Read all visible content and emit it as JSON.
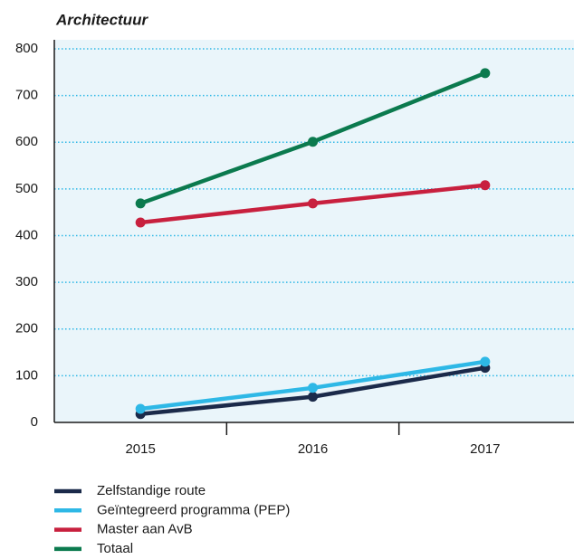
{
  "chart_data": {
    "type": "line",
    "title": "Architectuur",
    "categories": [
      "2015",
      "2016",
      "2017"
    ],
    "series": [
      {
        "name": "Zelfstandige route",
        "color": "#1b2a4a",
        "values": [
          18,
          55,
          117
        ]
      },
      {
        "name": "Geïntegreerd programma (PEP)",
        "color": "#2eb8e6",
        "values": [
          29,
          74,
          130
        ]
      },
      {
        "name": "Master aan AvB",
        "color": "#c8203e",
        "values": [
          428,
          469,
          508
        ]
      },
      {
        "name": "Totaal",
        "color": "#0b7a4e",
        "values": [
          469,
          601,
          748
        ]
      }
    ],
    "ylim": [
      0,
      800
    ],
    "yticks": [
      0,
      100,
      200,
      300,
      400,
      500,
      600,
      700,
      800
    ],
    "grid": true
  }
}
